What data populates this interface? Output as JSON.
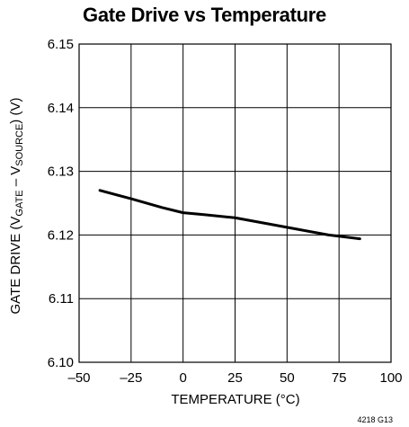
{
  "chart_data": {
    "type": "line",
    "title": "Gate Drive vs Temperature",
    "xlabel": "TEMPERATURE (°C)",
    "ylabel": {
      "prefix": "GATE DRIVE (V",
      "sub1": "GATE",
      "mid": " – V",
      "sub2": "SOURCE",
      "suffix": ") (V)"
    },
    "xlim": [
      -50,
      100
    ],
    "ylim": [
      6.1,
      6.15
    ],
    "xticks": [
      -50,
      -25,
      0,
      25,
      50,
      75,
      100
    ],
    "xtick_labels": [
      "–50",
      "–25",
      "0",
      "25",
      "50",
      "75",
      "100"
    ],
    "yticks": [
      6.1,
      6.11,
      6.12,
      6.13,
      6.14,
      6.15
    ],
    "ytick_labels": [
      "6.10",
      "6.11",
      "6.12",
      "6.13",
      "6.14",
      "6.15"
    ],
    "grid": true,
    "series": [
      {
        "x": [
          -40,
          -25,
          -10,
          0,
          10,
          25,
          40,
          55,
          70,
          85
        ],
        "y": [
          6.127,
          6.1257,
          6.1243,
          6.1235,
          6.1232,
          6.1227,
          6.1218,
          6.1209,
          6.12,
          6.1194
        ]
      }
    ],
    "note": "4218 G13"
  }
}
